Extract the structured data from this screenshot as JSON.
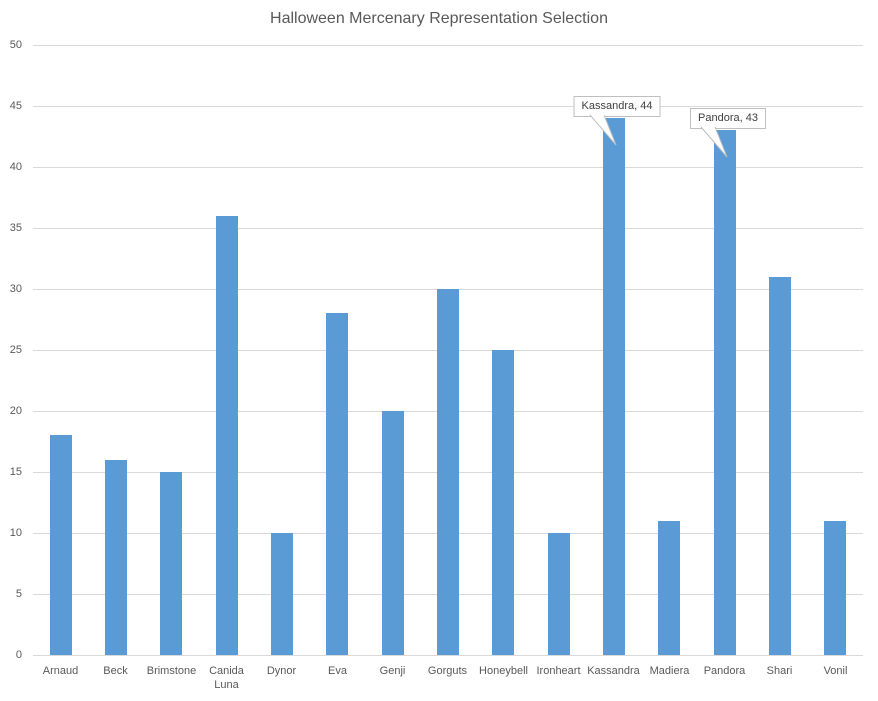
{
  "chart_data": {
    "type": "bar",
    "title": "Halloween Mercenary Representation Selection",
    "categories": [
      "Arnaud",
      "Beck",
      "Brimstone",
      "Canida Luna",
      "Dynor",
      "Eva",
      "Genji",
      "Gorguts",
      "Honeybell",
      "Ironheart",
      "Kassandra",
      "Madiera",
      "Pandora",
      "Shari",
      "Vonil"
    ],
    "values": [
      18,
      16,
      15,
      36,
      10,
      28,
      20,
      30,
      25,
      10,
      44,
      11,
      43,
      31,
      11
    ],
    "xlabel": "",
    "ylabel": "",
    "ylim": [
      0,
      50
    ],
    "ytick_step": 5,
    "yticks": [
      0,
      5,
      10,
      15,
      20,
      25,
      30,
      35,
      40,
      45,
      50
    ],
    "grid": true,
    "legend": false,
    "annotations": [
      {
        "label": "Kassandra, 44",
        "category": "Kassandra",
        "value": 44
      },
      {
        "label": "Pandora, 43",
        "category": "Pandora",
        "value": 43
      }
    ]
  },
  "colors": {
    "bar": "#5b9bd5",
    "gridline": "#d9d9d9",
    "axis_text": "#595959",
    "title_text": "#595959",
    "callout_border": "#bfbfbf",
    "callout_text": "#404040"
  }
}
